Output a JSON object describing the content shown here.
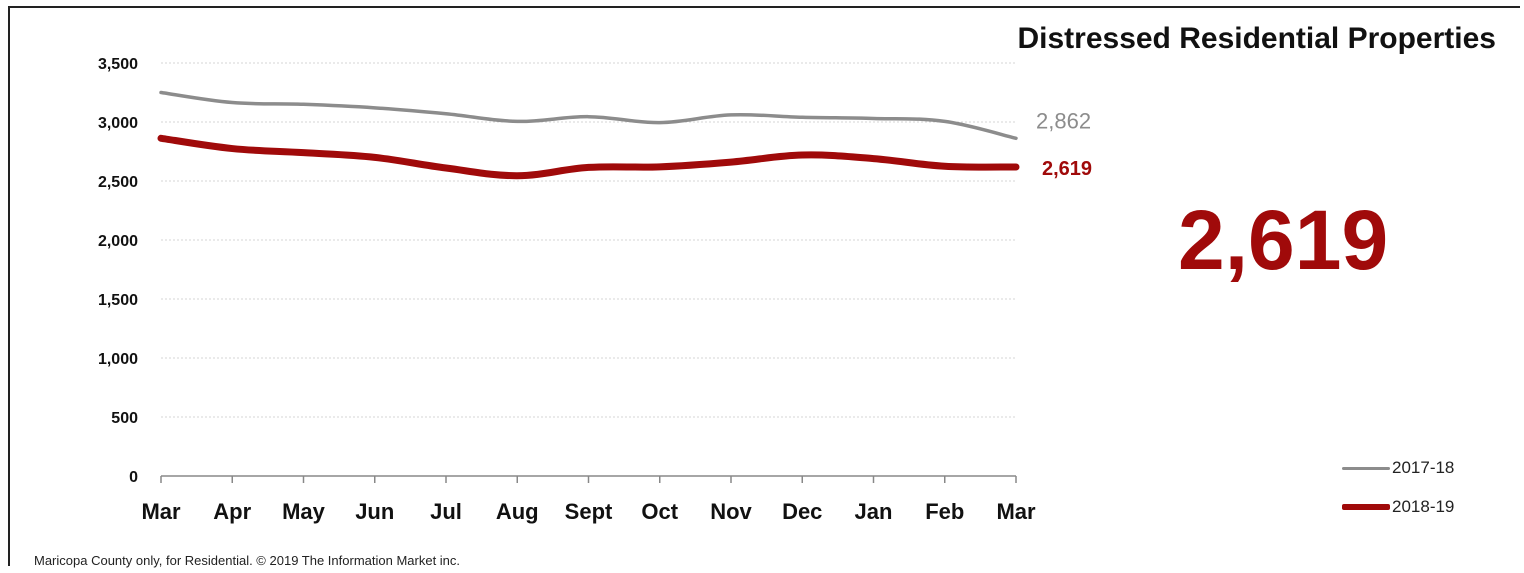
{
  "title": "Distressed Residential Properties",
  "big_value": "2,619",
  "footer": "Maricopa County only, for Residential. © 2019 The Information Market inc.",
  "colors": {
    "series_2017": "#8c8c8c",
    "series_2018": "#a00a0a",
    "grid": "#d6d6d6",
    "axis": "#888888"
  },
  "chart_data": {
    "type": "line",
    "categories": [
      "Mar",
      "Apr",
      "May",
      "Jun",
      "Jul",
      "Aug",
      "Sept",
      "Oct",
      "Nov",
      "Dec",
      "Jan",
      "Feb",
      "Mar"
    ],
    "ylim": [
      0,
      3500
    ],
    "yticks": [
      0,
      500,
      1000,
      1500,
      2000,
      2500,
      3000,
      3500
    ],
    "ytick_labels": [
      "0",
      "500",
      "1,000",
      "1,500",
      "2,000",
      "2,500",
      "3,000",
      "3,500"
    ],
    "grid": true,
    "legend_position": "bottom-right",
    "series": [
      {
        "name": "2017-18",
        "color": "#8c8c8c",
        "values": [
          3250,
          3165,
          3150,
          3120,
          3070,
          3005,
          3045,
          2995,
          3060,
          3040,
          3030,
          3005,
          2862
        ],
        "end_label": "2,862"
      },
      {
        "name": "2018-19",
        "color": "#a00a0a",
        "values": [
          2862,
          2775,
          2740,
          2700,
          2610,
          2545,
          2615,
          2620,
          2660,
          2720,
          2690,
          2625,
          2619
        ],
        "end_label": "2,619"
      }
    ]
  }
}
